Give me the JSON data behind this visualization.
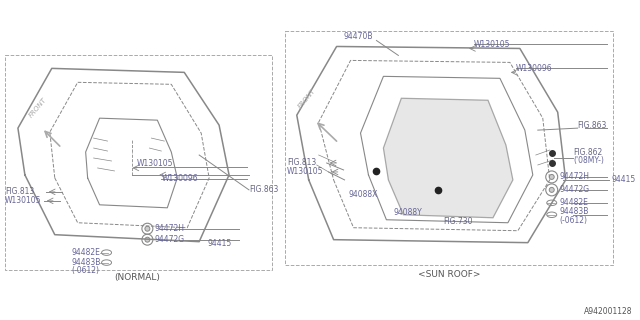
{
  "bg_color": "#ffffff",
  "line_color": "#888888",
  "text_color": "#555555",
  "part_color": "#666699",
  "fig_color": "#666688",
  "diagram_id": "A942001128",
  "normal_label": "(NORMAL)",
  "sunroof_label": "<SUN ROOF>"
}
